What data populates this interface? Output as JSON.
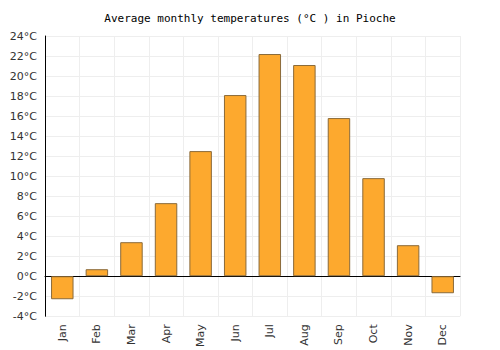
{
  "chart_data": {
    "type": "bar",
    "title": "Average monthly temperatures (°C ) in Pioche",
    "categories": [
      "Jan",
      "Feb",
      "Mar",
      "Apr",
      "May",
      "Jun",
      "Jul",
      "Aug",
      "Sep",
      "Oct",
      "Nov",
      "Dec"
    ],
    "values": [
      -2.3,
      0.7,
      3.4,
      7.3,
      12.5,
      18.1,
      22.2,
      21.1,
      15.8,
      9.8,
      3.1,
      -1.7
    ],
    "color": "#fda92e",
    "ylim": [
      -4,
      24
    ],
    "yticks": [
      {
        "value": -4,
        "label": "-4°C"
      },
      {
        "value": -2,
        "label": "-2°C"
      },
      {
        "value": 0,
        "label": "0°C"
      },
      {
        "value": 2,
        "label": "2°C"
      },
      {
        "value": 4,
        "label": "4°C"
      },
      {
        "value": 6,
        "label": "6°C"
      },
      {
        "value": 8,
        "label": "8°C"
      },
      {
        "value": 10,
        "label": "10°C"
      },
      {
        "value": 12,
        "label": "12°C"
      },
      {
        "value": 14,
        "label": "14°C"
      },
      {
        "value": 16,
        "label": "16°C"
      },
      {
        "value": 18,
        "label": "18°C"
      },
      {
        "value": 20,
        "label": "20°C"
      },
      {
        "value": 22,
        "label": "22°C"
      },
      {
        "value": 24,
        "label": "24°C"
      }
    ],
    "grid": true
  }
}
